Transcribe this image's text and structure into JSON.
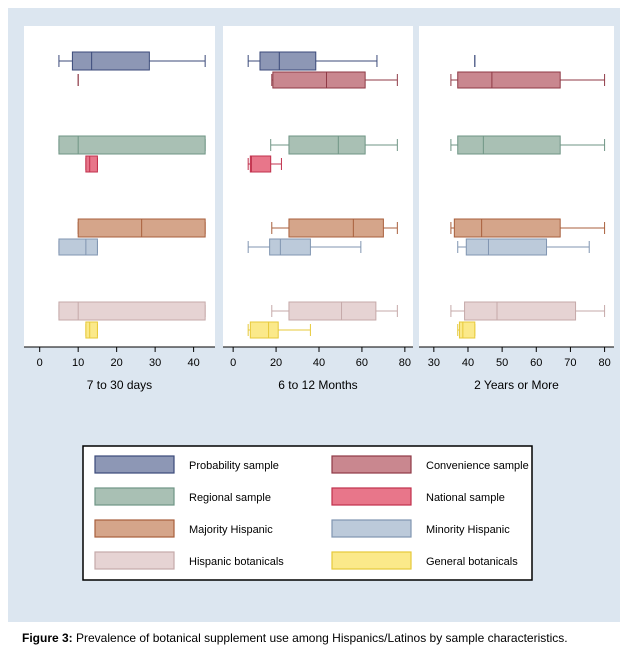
{
  "caption": {
    "label": "Figure 3:",
    "text": " Prevalence of botanical supplement use among Hispanics/Latinos by sample characteristics."
  },
  "legend": [
    {
      "key": "probability",
      "label": "Probability sample",
      "fill": "#8d97b5",
      "stroke": "#3b4a7a"
    },
    {
      "key": "convenience",
      "label": "Convenience sample",
      "fill": "#c9878f",
      "stroke": "#8f3a46"
    },
    {
      "key": "regional",
      "label": "Regional sample",
      "fill": "#a9c0b4",
      "stroke": "#6f9585"
    },
    {
      "key": "national",
      "label": "National sample",
      "fill": "#e8768a",
      "stroke": "#c0304c"
    },
    {
      "key": "majority",
      "label": "Majority Hispanic",
      "fill": "#d5a58a",
      "stroke": "#a85f3c"
    },
    {
      "key": "minority",
      "label": "Minority Hispanic",
      "fill": "#bccada",
      "stroke": "#8095b1"
    },
    {
      "key": "hisp_bot",
      "label": "Hispanic botanicals",
      "fill": "#e6d3d3",
      "stroke": "#c5a9a9"
    },
    {
      "key": "gen_bot",
      "label": "General botanicals",
      "fill": "#fbe98a",
      "stroke": "#e7c93a"
    }
  ],
  "chart_data": [
    {
      "type": "box",
      "xlabel": "7 to 30 days",
      "xlim": [
        -2,
        44
      ],
      "ticks": [
        0,
        10,
        20,
        30,
        40
      ],
      "boxes": [
        {
          "group": "probability",
          "row": 0,
          "slot": 0,
          "whisker_low": 5,
          "q1": 8.5,
          "median": 13.5,
          "q3": 28.5,
          "whisker_high": 43
        },
        {
          "group": "convenience",
          "row": 0,
          "slot": 1,
          "whisker_low": 10,
          "q1": 10,
          "median": 10,
          "q3": 10,
          "whisker_high": 10
        },
        {
          "group": "regional",
          "row": 1,
          "slot": 0,
          "whisker_low": 5,
          "q1": 5,
          "median": 10,
          "q3": 43,
          "whisker_high": 43
        },
        {
          "group": "national",
          "row": 1,
          "slot": 1,
          "whisker_low": 12,
          "q1": 12,
          "median": 13,
          "q3": 15,
          "whisker_high": 15
        },
        {
          "group": "majority",
          "row": 2,
          "slot": 0,
          "whisker_low": 10,
          "q1": 10,
          "median": 26.5,
          "q3": 43,
          "whisker_high": 43
        },
        {
          "group": "minority",
          "row": 2,
          "slot": 1,
          "whisker_low": 5,
          "q1": 5,
          "median": 12,
          "q3": 15,
          "whisker_high": 15
        },
        {
          "group": "hisp_bot",
          "row": 3,
          "slot": 0,
          "whisker_low": 5,
          "q1": 5,
          "median": 10,
          "q3": 43,
          "whisker_high": 43
        },
        {
          "group": "gen_bot",
          "row": 3,
          "slot": 1,
          "whisker_low": 12,
          "q1": 12,
          "median": 13,
          "q3": 15,
          "whisker_high": 15
        }
      ]
    },
    {
      "type": "box",
      "xlabel": "6 to 12 Months",
      "xlim": [
        -1,
        81
      ],
      "ticks": [
        0,
        20,
        40,
        60,
        80
      ],
      "boxes": [
        {
          "group": "probability",
          "row": 0,
          "slot": 0,
          "whisker_low": 7,
          "q1": 12.5,
          "median": 21.5,
          "q3": 38.5,
          "whisker_high": 67
        },
        {
          "group": "convenience",
          "row": 0,
          "slot": 1,
          "whisker_low": 18,
          "q1": 18.5,
          "median": 43.5,
          "q3": 61.5,
          "whisker_high": 76.5
        },
        {
          "group": "regional",
          "row": 1,
          "slot": 0,
          "whisker_low": 17.5,
          "q1": 26,
          "median": 49,
          "q3": 61.5,
          "whisker_high": 76.5
        },
        {
          "group": "national",
          "row": 1,
          "slot": 1,
          "whisker_low": 7,
          "q1": 8,
          "median": 8.5,
          "q3": 17.5,
          "whisker_high": 22.5
        },
        {
          "group": "majority",
          "row": 2,
          "slot": 0,
          "whisker_low": 18,
          "q1": 26,
          "median": 56,
          "q3": 70,
          "whisker_high": 76.5
        },
        {
          "group": "minority",
          "row": 2,
          "slot": 1,
          "whisker_low": 7,
          "q1": 17,
          "median": 22,
          "q3": 36,
          "whisker_high": 59.5
        },
        {
          "group": "hisp_bot",
          "row": 3,
          "slot": 0,
          "whisker_low": 18,
          "q1": 26,
          "median": 50.5,
          "q3": 66.5,
          "whisker_high": 76.5
        },
        {
          "group": "gen_bot",
          "row": 3,
          "slot": 1,
          "whisker_low": 7,
          "q1": 8,
          "median": 16.5,
          "q3": 21,
          "whisker_high": 36
        }
      ]
    },
    {
      "type": "box",
      "xlabel": "2 Years or More",
      "xlim": [
        28,
        81
      ],
      "ticks": [
        30,
        40,
        50,
        60,
        70,
        80
      ],
      "boxes": [
        {
          "group": "probability",
          "row": 0,
          "slot": 0,
          "whisker_low": 42,
          "q1": 42,
          "median": 42,
          "q3": 42,
          "whisker_high": 42
        },
        {
          "group": "convenience",
          "row": 0,
          "slot": 1,
          "whisker_low": 35,
          "q1": 37,
          "median": 47,
          "q3": 67,
          "whisker_high": 80
        },
        {
          "group": "regional",
          "row": 1,
          "slot": 0,
          "whisker_low": 35,
          "q1": 37,
          "median": 44.5,
          "q3": 67,
          "whisker_high": 80
        },
        {
          "group": "majority",
          "row": 2,
          "slot": 0,
          "whisker_low": 35,
          "q1": 36,
          "median": 44,
          "q3": 67,
          "whisker_high": 80
        },
        {
          "group": "minority",
          "row": 2,
          "slot": 1,
          "whisker_low": 37,
          "q1": 39.5,
          "median": 46,
          "q3": 63,
          "whisker_high": 75.5
        },
        {
          "group": "hisp_bot",
          "row": 3,
          "slot": 0,
          "whisker_low": 35,
          "q1": 39,
          "median": 48.5,
          "q3": 71.5,
          "whisker_high": 80
        },
        {
          "group": "gen_bot",
          "row": 3,
          "slot": 1,
          "whisker_low": 37,
          "q1": 37.5,
          "median": 38.5,
          "q3": 42,
          "whisker_high": 42
        }
      ]
    }
  ]
}
